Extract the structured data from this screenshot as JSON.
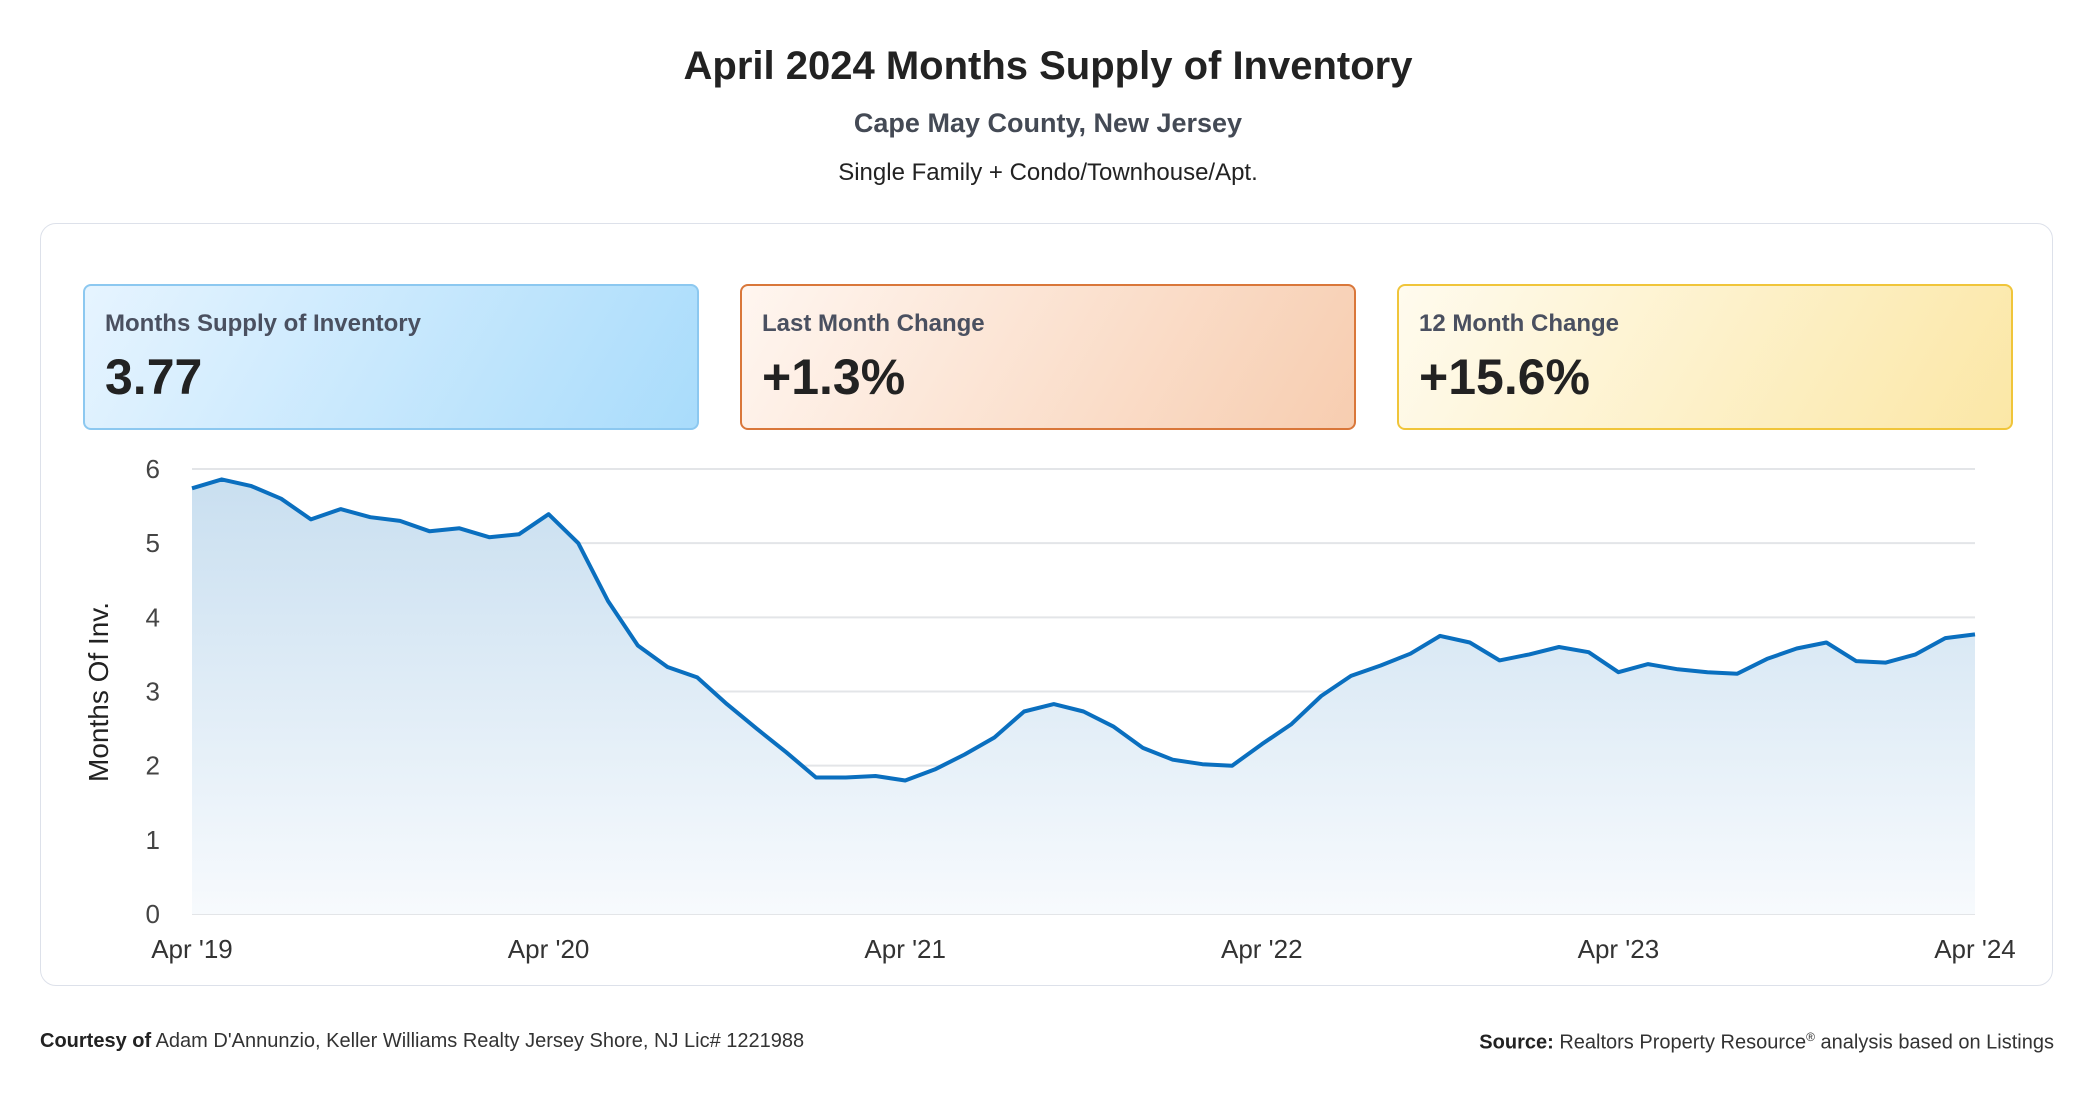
{
  "header": {
    "title": "April 2024 Months Supply of Inventory",
    "subtitle": "Cape May County, New Jersey",
    "property_types": "Single Family + Condo/Townhouse/Apt."
  },
  "cards": [
    {
      "label": "Months Supply of Inventory",
      "value": "3.77",
      "color": "#8cc8f0"
    },
    {
      "label": "Last Month Change",
      "value": "+1.3%",
      "color": "#d9773a"
    },
    {
      "label": "12 Month Change",
      "value": "+15.6%",
      "color": "#f0c53a"
    }
  ],
  "chart_data": {
    "type": "area",
    "ylabel": "Months Of Inv.",
    "xlabel": "",
    "ylim": [
      0,
      6
    ],
    "yticks": [
      "0",
      "1",
      "2",
      "3",
      "4",
      "5",
      "6"
    ],
    "xticks": [
      "Apr '19",
      "Apr '20",
      "Apr '21",
      "Apr '22",
      "Apr '23",
      "Apr '24"
    ],
    "grid": true,
    "line_color": "#0a6fbf",
    "x_start": "2019-04",
    "x_end": "2024-04",
    "frequency": "monthly",
    "values": [
      5.74,
      5.86,
      5.77,
      5.6,
      5.32,
      5.46,
      5.35,
      5.3,
      5.16,
      5.2,
      5.08,
      5.12,
      5.39,
      5.0,
      4.22,
      3.62,
      3.33,
      3.19,
      2.83,
      2.5,
      2.18,
      1.84,
      1.84,
      1.86,
      1.8,
      1.95,
      2.15,
      2.38,
      2.73,
      2.83,
      2.73,
      2.53,
      2.24,
      2.08,
      2.02,
      2.0,
      2.29,
      2.56,
      2.94,
      3.21,
      3.35,
      3.51,
      3.75,
      3.66,
      3.42,
      3.5,
      3.6,
      3.53,
      3.26,
      3.37,
      3.3,
      3.26,
      3.24,
      3.44,
      3.58,
      3.66,
      3.41,
      3.39,
      3.5,
      3.72,
      3.77
    ]
  },
  "footer": {
    "courtesy_label": "Courtesy of",
    "courtesy_text": "Adam D'Annunzio, Keller Williams Realty Jersey Shore, NJ Lic# 1221988",
    "source_label": "Source:",
    "source_text": "Realtors Property Resource",
    "source_sup": "®",
    "source_suffix": "analysis based on Listings"
  }
}
